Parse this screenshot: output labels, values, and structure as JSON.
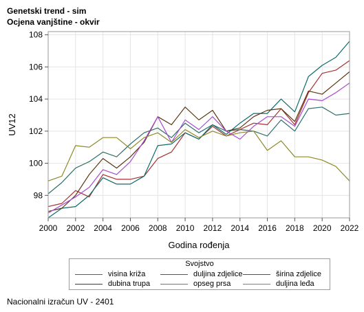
{
  "title": "Genetski trend - sim",
  "subtitle": "Ocjena vanjštine - okvir",
  "footnote": "Nacionalni izračun UV - 2401",
  "chart_data": {
    "type": "line",
    "xlabel": "Godina rođenja",
    "ylabel": "UV12",
    "xlim": [
      2000,
      2022
    ],
    "ylim": [
      96.6,
      108.2
    ],
    "x_ticks": [
      2000,
      2002,
      2004,
      2006,
      2008,
      2010,
      2012,
      2014,
      2016,
      2018,
      2020,
      2022
    ],
    "y_ticks": [
      98,
      100,
      102,
      104,
      106,
      108
    ],
    "grid": true,
    "legend_title": "Svojstvo",
    "legend_position": "bottom",
    "x": [
      2000,
      2001,
      2002,
      2003,
      2004,
      2005,
      2006,
      2007,
      2008,
      2009,
      2010,
      2011,
      2012,
      2013,
      2014,
      2015,
      2016,
      2017,
      2018,
      2019,
      2020,
      2021,
      2022
    ],
    "series": [
      {
        "name": "visina križa",
        "color": "#2e6f6a",
        "values": [
          98.1,
          98.8,
          99.7,
          100.1,
          100.7,
          100.4,
          101.2,
          101.9,
          102.2,
          101.6,
          102.5,
          101.9,
          102.4,
          102.0,
          102.1,
          102.0,
          101.7,
          102.7,
          102.0,
          103.4,
          103.5,
          103.0,
          103.1
        ]
      },
      {
        "name": "duljina zdjelice",
        "color": "#a5312f",
        "values": [
          97.3,
          97.5,
          98.3,
          97.9,
          99.3,
          99.0,
          99.0,
          99.2,
          100.3,
          100.7,
          101.9,
          101.5,
          102.3,
          101.7,
          102.1,
          102.5,
          102.4,
          103.4,
          102.4,
          104.4,
          105.6,
          105.8,
          106.4
        ]
      },
      {
        "name": "širina zdjelice",
        "color": "#0c6b6b",
        "values": [
          96.6,
          97.2,
          97.3,
          98.0,
          99.1,
          98.7,
          98.7,
          99.2,
          101.1,
          101.2,
          101.9,
          101.5,
          102.4,
          101.8,
          102.5,
          103.1,
          103.1,
          104.0,
          103.2,
          105.4,
          106.1,
          106.6,
          107.6
        ]
      },
      {
        "name": "dubina trupa",
        "color": "#5a3510",
        "values": [
          97.0,
          97.2,
          98.0,
          99.3,
          100.3,
          99.7,
          100.4,
          101.3,
          102.9,
          102.4,
          103.5,
          102.7,
          103.3,
          102.0,
          102.2,
          102.9,
          103.3,
          103.4,
          102.6,
          104.5,
          104.3,
          105.0,
          105.7
        ]
      },
      {
        "name": "opseg prsa",
        "color": "#a84ad1",
        "values": [
          96.9,
          97.4,
          97.9,
          98.5,
          99.6,
          99.3,
          100.1,
          101.4,
          102.9,
          101.3,
          102.7,
          102.1,
          102.9,
          102.0,
          101.5,
          102.3,
          102.9,
          102.9,
          102.3,
          104.0,
          103.9,
          104.4,
          105.0
        ]
      },
      {
        "name": "duljina leđa",
        "color": "#8c8a28",
        "values": [
          98.9,
          99.2,
          101.1,
          101.0,
          101.6,
          101.6,
          100.9,
          101.6,
          101.9,
          101.3,
          102.1,
          101.6,
          102.0,
          101.7,
          101.9,
          102.0,
          100.8,
          101.4,
          100.4,
          100.4,
          100.2,
          99.8,
          98.9
        ]
      }
    ]
  }
}
